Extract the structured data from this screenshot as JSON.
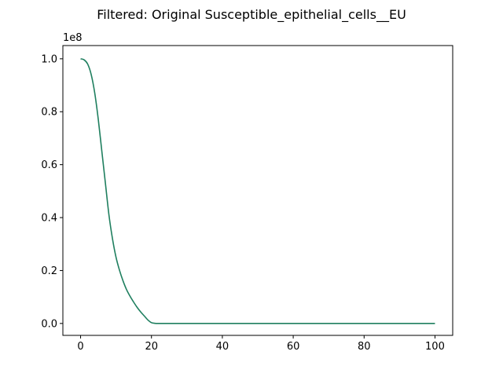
{
  "chart_data": {
    "type": "line",
    "title": "Filtered: Original Susceptible_epithelial_cells__EU",
    "xlabel": "",
    "ylabel": "",
    "y_offset_label": "1e8",
    "xlim": [
      -5,
      105
    ],
    "ylim": [
      -4.5,
      105
    ],
    "y_scale_factor": 100000000,
    "grid": false,
    "legend": "none",
    "x_ticks": [
      0,
      20,
      40,
      60,
      80,
      100
    ],
    "x_tick_labels": [
      "0",
      "20",
      "40",
      "60",
      "80",
      "100"
    ],
    "y_ticks": [
      0,
      20,
      40,
      60,
      80,
      100
    ],
    "y_tick_labels": [
      "0.0",
      "0.2",
      "0.4",
      "0.6",
      "0.8",
      "1.0"
    ],
    "series": [
      {
        "color": "#1f7f5f",
        "x": [
          0,
          1,
          2,
          3,
          4,
          5,
          6,
          7,
          8,
          9,
          10,
          11,
          12,
          13,
          14,
          15,
          16,
          17,
          18,
          19,
          20,
          21,
          22,
          23,
          25,
          30,
          40,
          50,
          60,
          70,
          80,
          90,
          100
        ],
        "y": [
          100,
          99.6,
          98,
          94,
          87,
          77,
          65,
          53,
          41,
          32,
          25,
          20,
          16,
          12.7,
          10.2,
          8,
          6,
          4.3,
          2.8,
          1.3,
          0.3,
          0.05,
          0.01,
          0,
          0,
          0,
          0,
          0,
          0,
          0,
          0,
          0,
          0
        ]
      }
    ]
  }
}
